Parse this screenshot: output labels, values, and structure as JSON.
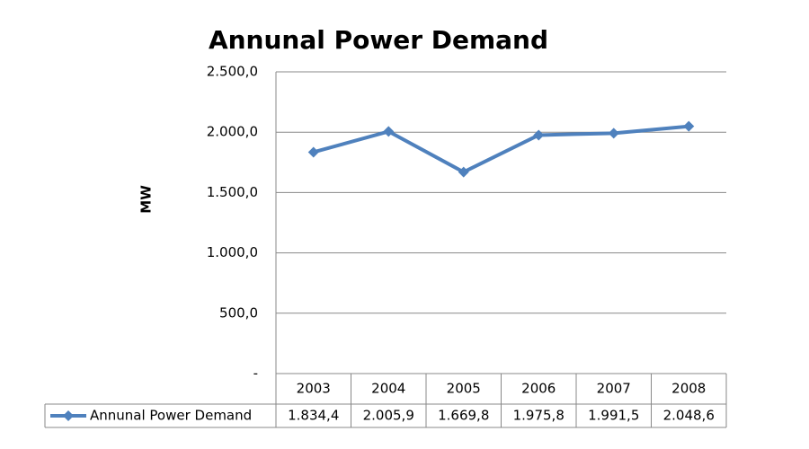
{
  "chart_data": {
    "type": "line",
    "title": "Annunal Power Demand",
    "y_label": "MW",
    "categories": [
      "2003",
      "2004",
      "2005",
      "2006",
      "2007",
      "2008"
    ],
    "series": [
      {
        "name": "Annunal Power Demand",
        "color": "#4f81bd",
        "values": [
          1834.4,
          2005.9,
          1669.8,
          1975.8,
          1991.5,
          2048.6
        ],
        "value_labels": [
          "1.834,4",
          "2.005,9",
          "1.669,8",
          "1.975,8",
          "1.991,5",
          "2.048,6"
        ]
      }
    ],
    "ylim": [
      0,
      2500
    ],
    "yticks": [
      {
        "value": 0,
        "label": "-"
      },
      {
        "value": 500,
        "label": "500,0"
      },
      {
        "value": 1000,
        "label": "1.000,0"
      },
      {
        "value": 1500,
        "label": "1.500,0"
      },
      {
        "value": 2000,
        "label": "2.000,0"
      },
      {
        "value": 2500,
        "label": "2.500,0"
      }
    ],
    "grid": true
  }
}
